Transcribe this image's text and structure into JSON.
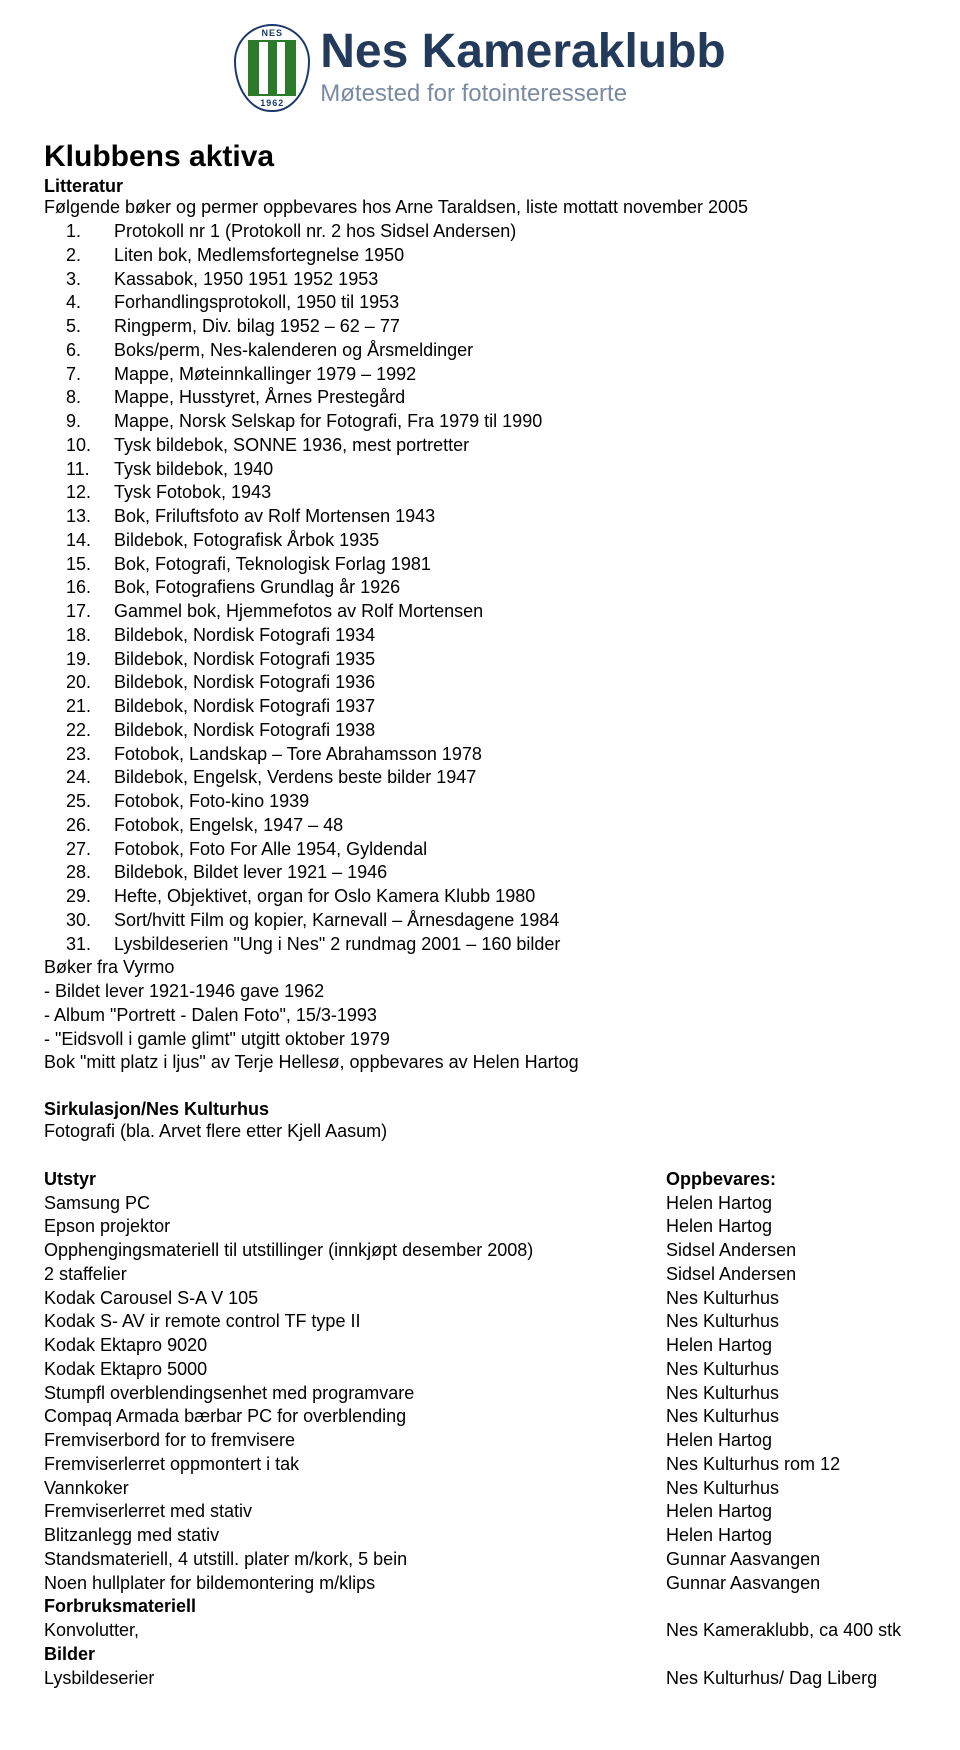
{
  "brand": {
    "emblem_top": "NES",
    "emblem_bottom": "1962",
    "title": "Nes Kameraklubb",
    "subtitle": "Møtested for fotointeresserte"
  },
  "page_title": "Klubbens aktiva",
  "lit_heading": "Litteratur",
  "lit_intro": "Følgende bøker og permer oppbevares hos Arne Taraldsen, liste mottatt november 2005",
  "lit_items": [
    "Protokoll nr 1 (Protokoll nr. 2 hos Sidsel Andersen)",
    "Liten bok, Medlemsfortegnelse 1950",
    "Kassabok, 1950 1951 1952 1953",
    "Forhandlingsprotokoll, 1950 til 1953",
    "Ringperm, Div. bilag 1952 – 62 – 77",
    "Boks/perm, Nes-kalenderen og Årsmeldinger",
    "Mappe, Møteinnkallinger 1979 – 1992",
    "Mappe, Husstyret, Årnes Prestegård",
    "Mappe, Norsk Selskap for Fotografi, Fra 1979 til 1990",
    "Tysk bildebok, SONNE 1936, mest portretter",
    "Tysk bildebok, 1940",
    "Tysk Fotobok, 1943",
    "Bok, Friluftsfoto av Rolf Mortensen 1943",
    "Bildebok, Fotografisk Årbok 1935",
    "Bok, Fotografi, Teknologisk Forlag 1981",
    "Bok, Fotografiens Grundlag år 1926",
    "Gammel bok, Hjemmefotos av Rolf Mortensen",
    "Bildebok, Nordisk Fotografi 1934",
    "Bildebok, Nordisk Fotografi 1935",
    "Bildebok, Nordisk Fotografi 1936",
    "Bildebok, Nordisk Fotografi 1937",
    "Bildebok, Nordisk Fotografi 1938",
    "Fotobok, Landskap – Tore Abrahamsson 1978",
    "Bildebok, Engelsk, Verdens beste bilder 1947",
    "Fotobok, Foto-kino 1939",
    "Fotobok, Engelsk, 1947 – 48",
    "Fotobok, Foto For Alle 1954, Gyldendal",
    "Bildebok, Bildet lever 1921 – 1946",
    "Hefte, Objektivet, organ for Oslo Kamera Klubb 1980",
    "Sort/hvitt Film og kopier, Karnevall – Årnesdagene 1984",
    "Lysbildeserien \"Ung i Nes\" 2 rundmag 2001 – 160 bilder"
  ],
  "vyrmo_heading": "Bøker fra Vyrmo",
  "vyrmo_lines": [
    " - Bildet lever 1921-1946 gave 1962",
    " - Album \"Portrett - Dalen Foto\", 15/3-1993",
    " - \"Eidsvoll i gamle glimt\" utgitt oktober 1979"
  ],
  "extra_line": "Bok \"mitt platz i ljus\" av Terje Hellesø, oppbevares av Helen Hartog",
  "sirk_heading": "Sirkulasjon/Nes Kulturhus",
  "sirk_line": "Fotografi (bla. Arvet flere etter Kjell Aasum)",
  "equip_head_left": "Utstyr",
  "equip_head_right": "Oppbevares:",
  "equipment": [
    {
      "item": "Samsung PC",
      "loc": "Helen Hartog"
    },
    {
      "item": "Epson projektor",
      "loc": "Helen Hartog"
    },
    {
      "item": "Opphengingsmateriell til utstillinger (innkjøpt desember 2008)",
      "loc": "Sidsel Andersen"
    },
    {
      "item": "2 staffelier",
      "loc": "Sidsel Andersen"
    },
    {
      "item": "Kodak Carousel S-A V 105",
      "loc": "Nes Kulturhus"
    },
    {
      "item": "Kodak S- AV ir remote control TF type II",
      "loc": "Nes Kulturhus"
    },
    {
      "item": "Kodak Ektapro 9020",
      "loc": "Helen Hartog"
    },
    {
      "item": "Kodak Ektapro 5000",
      "loc": "Nes Kulturhus"
    },
    {
      "item": "Stumpfl overblendingsenhet med programvare",
      "loc": "Nes Kulturhus"
    },
    {
      "item": "Compaq Armada bærbar PC for overblending",
      "loc": "Nes Kulturhus"
    },
    {
      "item": "Fremviserbord for to fremvisere",
      "loc": "Helen Hartog"
    },
    {
      "item": "Fremviserlerret oppmontert i tak",
      "loc": "Nes Kulturhus rom 12"
    },
    {
      "item": "Vannkoker",
      "loc": "Nes Kulturhus"
    },
    {
      "item": "Fremviserlerret med stativ",
      "loc": "Helen Hartog"
    },
    {
      "item": "Blitzanlegg med stativ",
      "loc": "Helen Hartog"
    },
    {
      "item": "Standsmateriell, 4 utstill. plater m/kork, 5 bein",
      "loc": "Gunnar Aasvangen"
    },
    {
      "item": "Noen hullplater for bildemontering m/klips",
      "loc": "Gunnar Aasvangen"
    }
  ],
  "supplies_heading": "Forbruksmateriell",
  "supplies": [
    {
      "item": "Konvolutter,",
      "loc": "Nes Kameraklubb, ca 400 stk"
    }
  ],
  "images_heading": "Bilder",
  "images": [
    {
      "item": "Lysbildeserier",
      "loc": "Nes Kulturhus/ Dag Liberg"
    }
  ]
}
